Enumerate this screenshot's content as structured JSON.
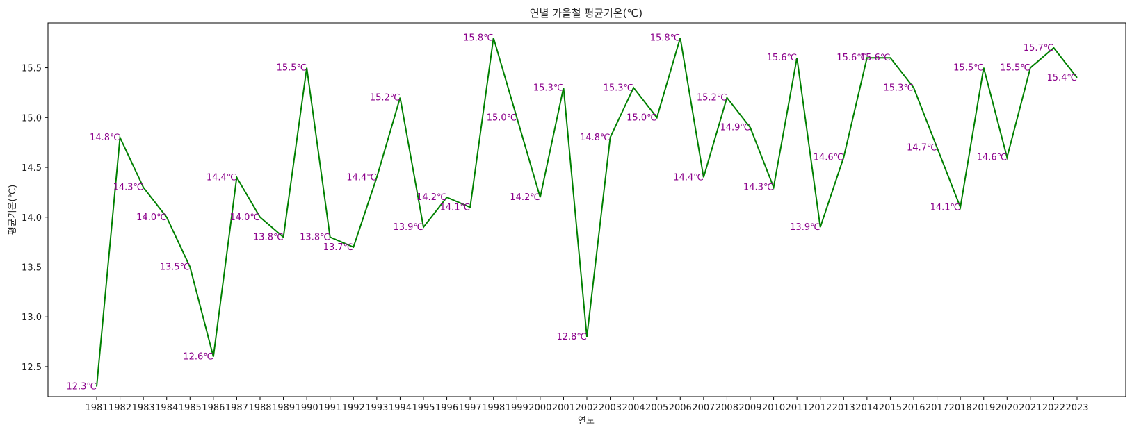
{
  "chart_data": {
    "type": "line",
    "title": "연별 가을철 평균기온(℃)",
    "xlabel": "연도",
    "ylabel": "평균기온(℃)",
    "x": [
      "1981",
      "1982",
      "1983",
      "1984",
      "1985",
      "1986",
      "1987",
      "1988",
      "1989",
      "1990",
      "1991",
      "1992",
      "1993",
      "1994",
      "1995",
      "1996",
      "1997",
      "1998",
      "1999",
      "2000",
      "2001",
      "2002",
      "2003",
      "2004",
      "2005",
      "2006",
      "2007",
      "2008",
      "2009",
      "2010",
      "2011",
      "2012",
      "2013",
      "2014",
      "2015",
      "2016",
      "2017",
      "2018",
      "2019",
      "2020",
      "2021",
      "2022",
      "2023"
    ],
    "series": [
      {
        "values": [
          12.3,
          14.8,
          14.3,
          14.0,
          13.5,
          12.6,
          14.4,
          14.0,
          13.8,
          15.5,
          13.8,
          13.7,
          14.4,
          15.2,
          13.9,
          14.2,
          14.1,
          15.8,
          15.0,
          14.2,
          15.3,
          12.8,
          14.8,
          15.3,
          15.0,
          15.8,
          14.4,
          15.2,
          14.9,
          14.3,
          15.6,
          13.9,
          14.6,
          15.6,
          15.6,
          15.3,
          14.7,
          14.1,
          15.5,
          14.6,
          15.5,
          15.7,
          15.4
        ],
        "labels": [
          "12.3℃",
          "14.8℃",
          "14.3℃",
          "14.0℃",
          "13.5℃",
          "12.6℃",
          "14.4℃",
          "14.0℃",
          "13.8℃",
          "15.5℃",
          "13.8℃",
          "13.7℃",
          "14.4℃",
          "15.2℃",
          "13.9℃",
          "14.2℃",
          "14.1℃",
          "15.8℃",
          "15.0℃",
          "14.2℃",
          "15.3℃",
          "12.8℃",
          "14.8℃",
          "15.3℃",
          "15.0℃",
          "15.8℃",
          "14.4℃",
          "15.2℃",
          "14.9℃",
          "14.3℃",
          "15.6℃",
          "13.9℃",
          "14.6℃",
          "15.6℃",
          "15.6℃",
          "15.3℃",
          "14.7℃",
          "14.1℃",
          "15.5℃",
          "14.6℃",
          "15.5℃",
          "15.7℃",
          "15.4℃"
        ]
      }
    ],
    "yticks": [
      "12.5",
      "13.0",
      "13.5",
      "14.0",
      "14.5",
      "15.0",
      "15.5"
    ],
    "ylim": [
      12.2,
      15.95
    ],
    "grid": false,
    "line_color": "#008000",
    "label_color": "#8b008b"
  }
}
